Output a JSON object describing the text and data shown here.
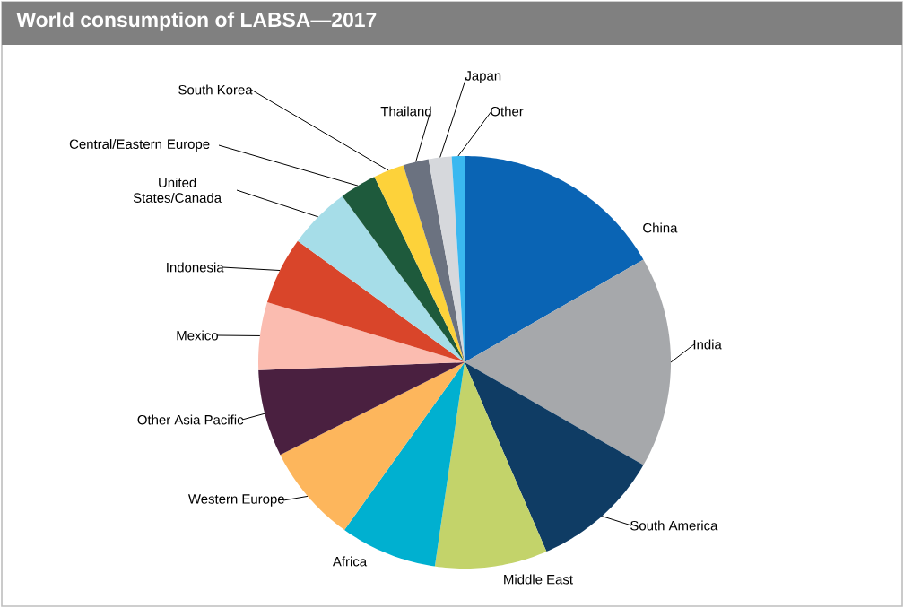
{
  "chart_data": {
    "type": "pie",
    "title": "World consumption of LABSA—2017",
    "categories": [
      "China",
      "India",
      "South America",
      "Middle East",
      "Africa",
      "Western Europe",
      "Other Asia Pacific",
      "Mexico",
      "Indonesia",
      "United States/Canada",
      "Central/Eastern Europe",
      "South Korea",
      "Thailand",
      "Japan",
      "Other"
    ],
    "values": [
      16.7,
      16.6,
      10.2,
      8.8,
      7.6,
      7.7,
      6.8,
      5.3,
      5.3,
      4.9,
      2.9,
      2.4,
      2.0,
      1.8,
      1.0
    ],
    "colors": [
      "#0a64b4",
      "#a6a8ab",
      "#0f3c64",
      "#c3d36a",
      "#00b0d0",
      "#fdb65c",
      "#4a2040",
      "#fbbcb0",
      "#d9452a",
      "#a6dde8",
      "#1e5a3c",
      "#fdd23a",
      "#6b7280",
      "#d6d8dc",
      "#3ab8f0"
    ]
  }
}
